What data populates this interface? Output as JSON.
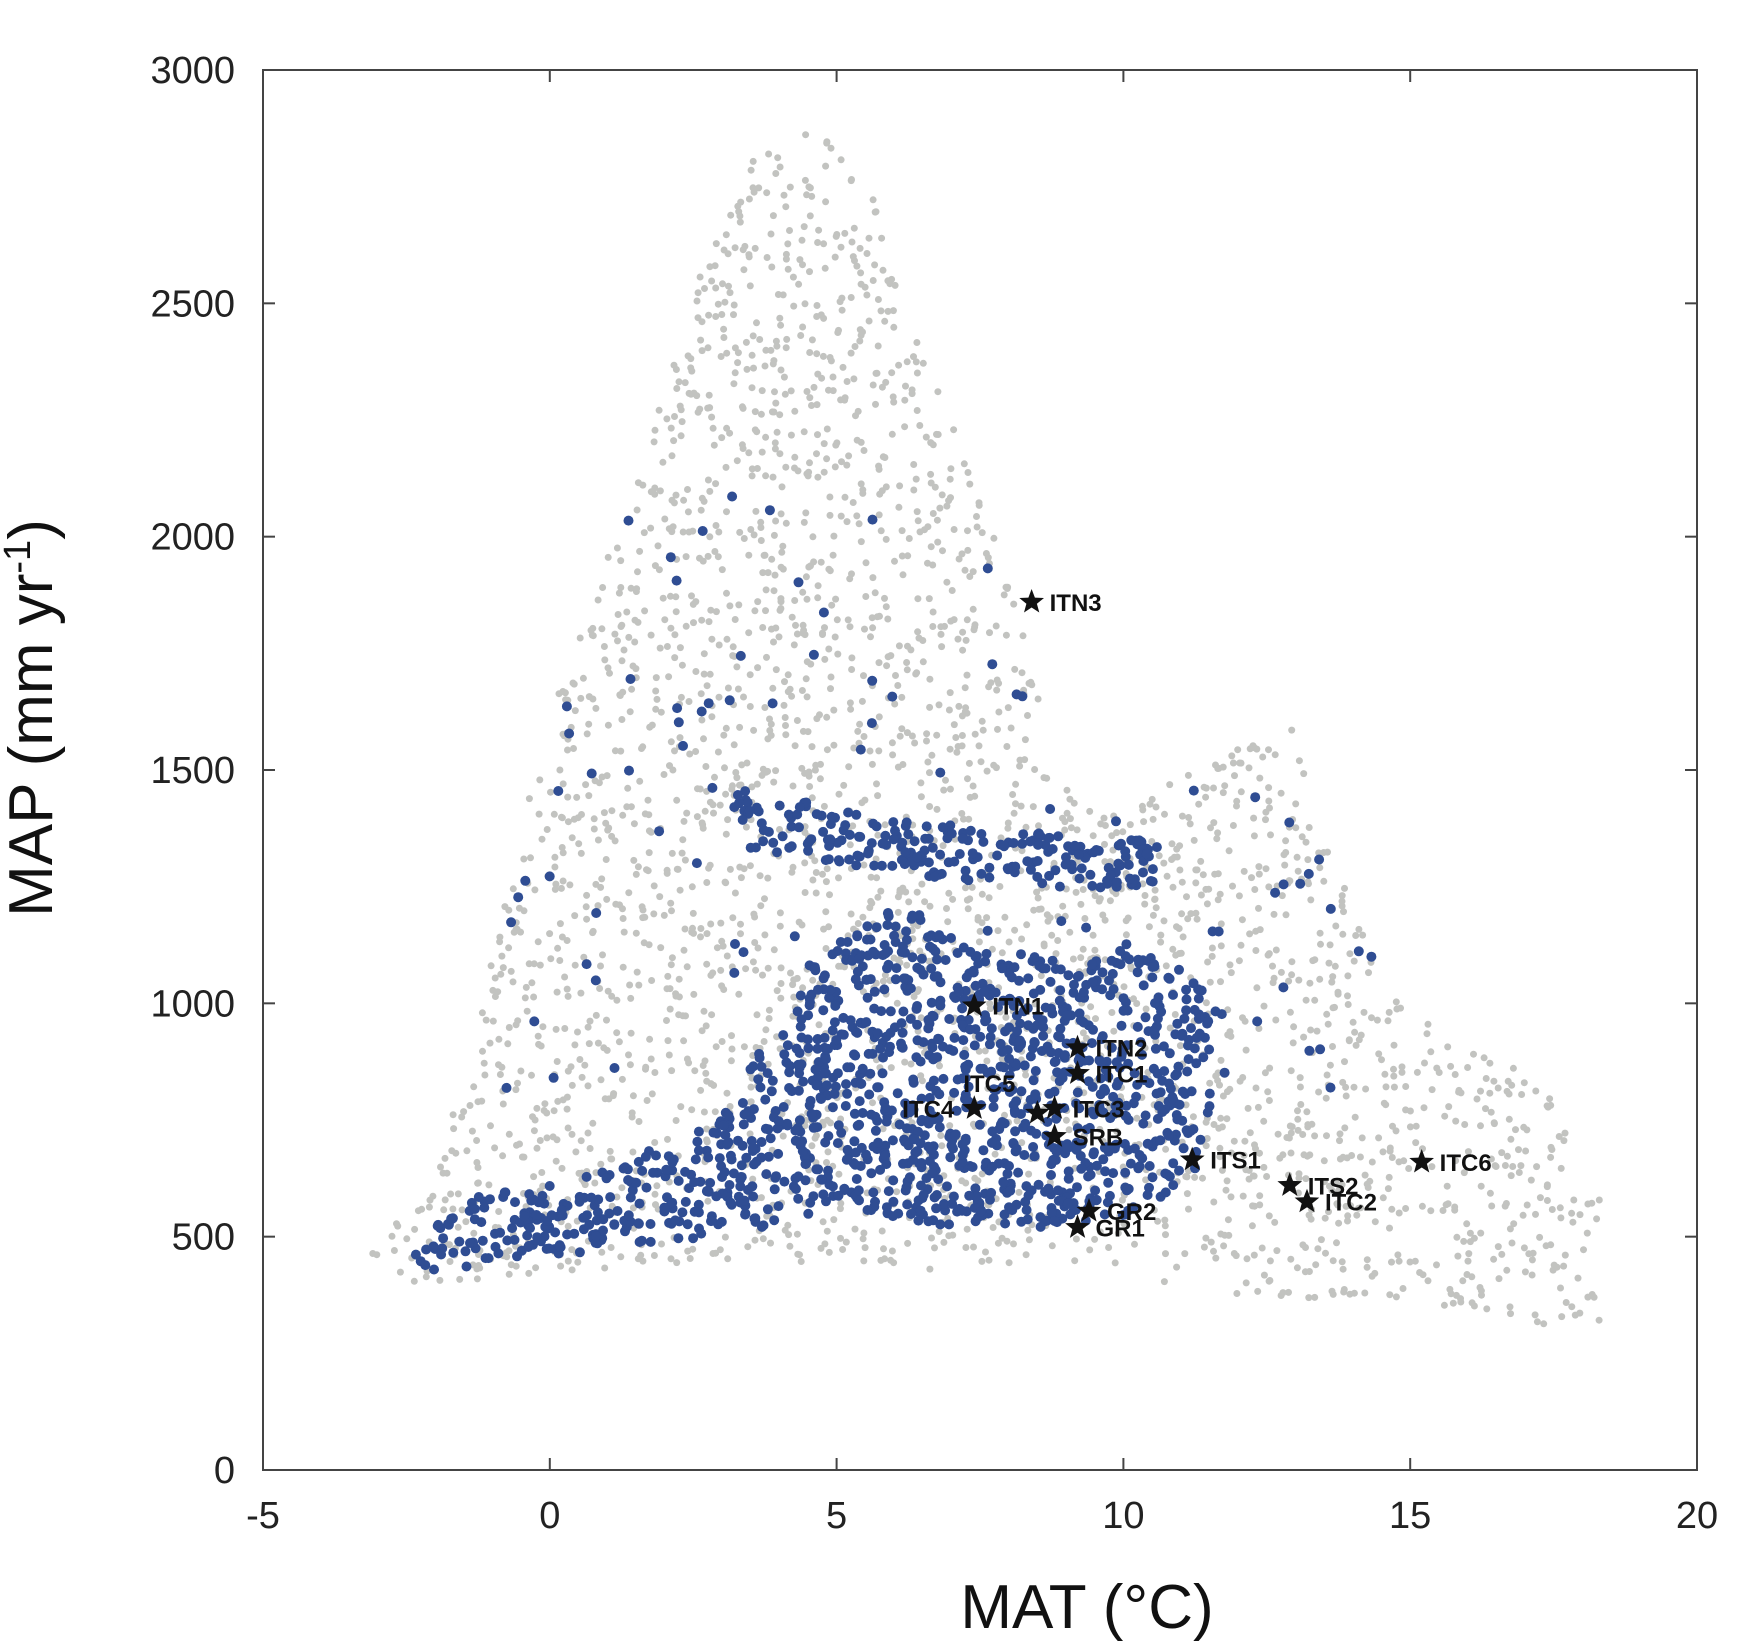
{
  "chart_data": {
    "type": "scatter",
    "xlabel": "MAT (°C)",
    "ylabel": "MAP (mm yr-1)",
    "ylabel_main": "MAP (mm yr",
    "ylabel_sup": "-1",
    "ylabel_close": ")",
    "xlim": [
      -5,
      20
    ],
    "ylim": [
      0,
      3000
    ],
    "xticks": [
      -5,
      0,
      5,
      10,
      15,
      20
    ],
    "yticks": [
      0,
      500,
      1000,
      1500,
      2000,
      2500,
      3000
    ],
    "grid": false,
    "colors": {
      "background_points": "#c2c3c0",
      "subset_points": "#2f4d93",
      "sites": "#111111"
    },
    "sites": [
      {
        "name": "ITN3",
        "mat": 8.4,
        "map": 1860
      },
      {
        "name": "ITN1",
        "mat": 7.4,
        "map": 995
      },
      {
        "name": "ITN2",
        "mat": 9.2,
        "map": 905
      },
      {
        "name": "ITC1",
        "mat": 9.2,
        "map": 850
      },
      {
        "name": "ITC5",
        "mat": 8.5,
        "map": 765
      },
      {
        "name": "ITC4",
        "mat": 7.4,
        "map": 775
      },
      {
        "name": "ITC3",
        "mat": 8.8,
        "map": 775
      },
      {
        "name": "SRB",
        "mat": 8.8,
        "map": 715
      },
      {
        "name": "ITS1",
        "mat": 11.2,
        "map": 665
      },
      {
        "name": "ITS2",
        "mat": 12.9,
        "map": 610
      },
      {
        "name": "ITC2",
        "mat": 13.2,
        "map": 575
      },
      {
        "name": "ITC6",
        "mat": 15.2,
        "map": 660
      },
      {
        "name": "GR2",
        "mat": 9.4,
        "map": 555
      },
      {
        "name": "GR1",
        "mat": 9.2,
        "map": 520
      }
    ]
  }
}
